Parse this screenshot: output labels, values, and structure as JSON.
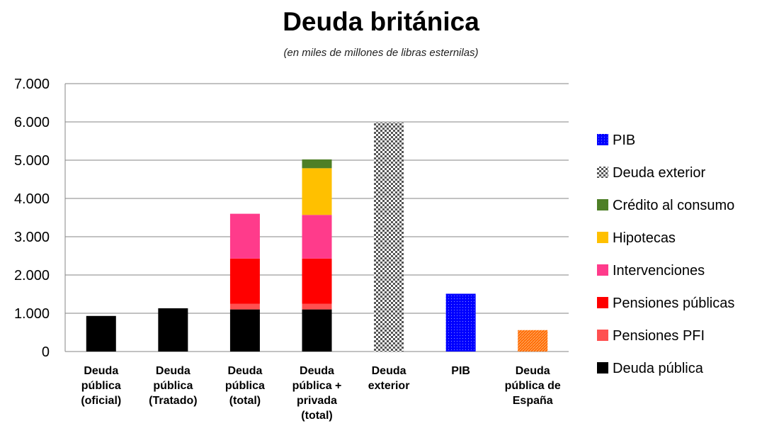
{
  "chart_data": {
    "type": "bar",
    "stacked": true,
    "title": "Deuda británica",
    "subtitle": "(en miles de millones de libras esternilas)",
    "xlabel": "",
    "ylabel": "",
    "ylim": [
      0,
      7000
    ],
    "yticks": [
      0,
      1000,
      2000,
      3000,
      4000,
      5000,
      6000,
      7000
    ],
    "ytick_labels": [
      "0",
      "1.000",
      "2.000",
      "3.000",
      "4.000",
      "5.000",
      "6.000",
      "7.000"
    ],
    "grid": true,
    "legend_position": "right",
    "categories": [
      [
        "Deuda",
        "pública",
        "(oficial)"
      ],
      [
        "Deuda",
        "pública",
        "(Tratado)"
      ],
      [
        "Deuda",
        "pública",
        "(total)"
      ],
      [
        "Deuda",
        "pública +",
        "privada",
        "(total)"
      ],
      [
        "Deuda",
        "exterior"
      ],
      [
        "PIB"
      ],
      [
        "Deuda",
        "pública de",
        "España"
      ]
    ],
    "series": [
      {
        "name": "Deuda pública",
        "color": "#000000",
        "pattern": "solid",
        "values": [
          930,
          1130,
          1100,
          1100,
          0,
          0,
          0
        ]
      },
      {
        "name": "Pensiones PFI",
        "color": "#ff5050",
        "pattern": "solid",
        "values": [
          0,
          0,
          150,
          150,
          0,
          0,
          0
        ]
      },
      {
        "name": "Pensiones públicas",
        "color": "#ff0000",
        "pattern": "solid",
        "values": [
          0,
          0,
          1180,
          1180,
          0,
          0,
          0
        ]
      },
      {
        "name": "Intervenciones",
        "color": "#ff3b8b",
        "pattern": "solid",
        "values": [
          0,
          0,
          1170,
          1140,
          0,
          0,
          0
        ]
      },
      {
        "name": "Hipotecas",
        "color": "#ffc000",
        "pattern": "solid",
        "values": [
          0,
          0,
          0,
          1220,
          0,
          0,
          0
        ]
      },
      {
        "name": "Crédito al consumo",
        "color": "#4e7f26",
        "pattern": "solid",
        "values": [
          0,
          0,
          0,
          230,
          0,
          0,
          0
        ]
      },
      {
        "name": "Deuda exterior",
        "color": "#7f7f7f",
        "pattern": "checker",
        "values": [
          0,
          0,
          0,
          0,
          5980,
          0,
          0
        ]
      },
      {
        "name": "PIB",
        "color": "#0000ff",
        "pattern": "dots",
        "values": [
          0,
          0,
          0,
          0,
          0,
          1510,
          0
        ]
      },
      {
        "name": "Deuda pública de España",
        "color": "#ff6a00",
        "pattern": "hatch",
        "values": [
          0,
          0,
          0,
          0,
          0,
          0,
          560
        ]
      }
    ],
    "legend": [
      {
        "name": "PIB",
        "series": 7
      },
      {
        "name": "Deuda exterior",
        "series": 6
      },
      {
        "name": "Crédito al consumo",
        "series": 5
      },
      {
        "name": "Hipotecas",
        "series": 4
      },
      {
        "name": "Intervenciones",
        "series": 3
      },
      {
        "name": "Pensiones públicas",
        "series": 2
      },
      {
        "name": "Pensiones PFI",
        "series": 1
      },
      {
        "name": "Deuda pública",
        "series": 0
      }
    ]
  }
}
